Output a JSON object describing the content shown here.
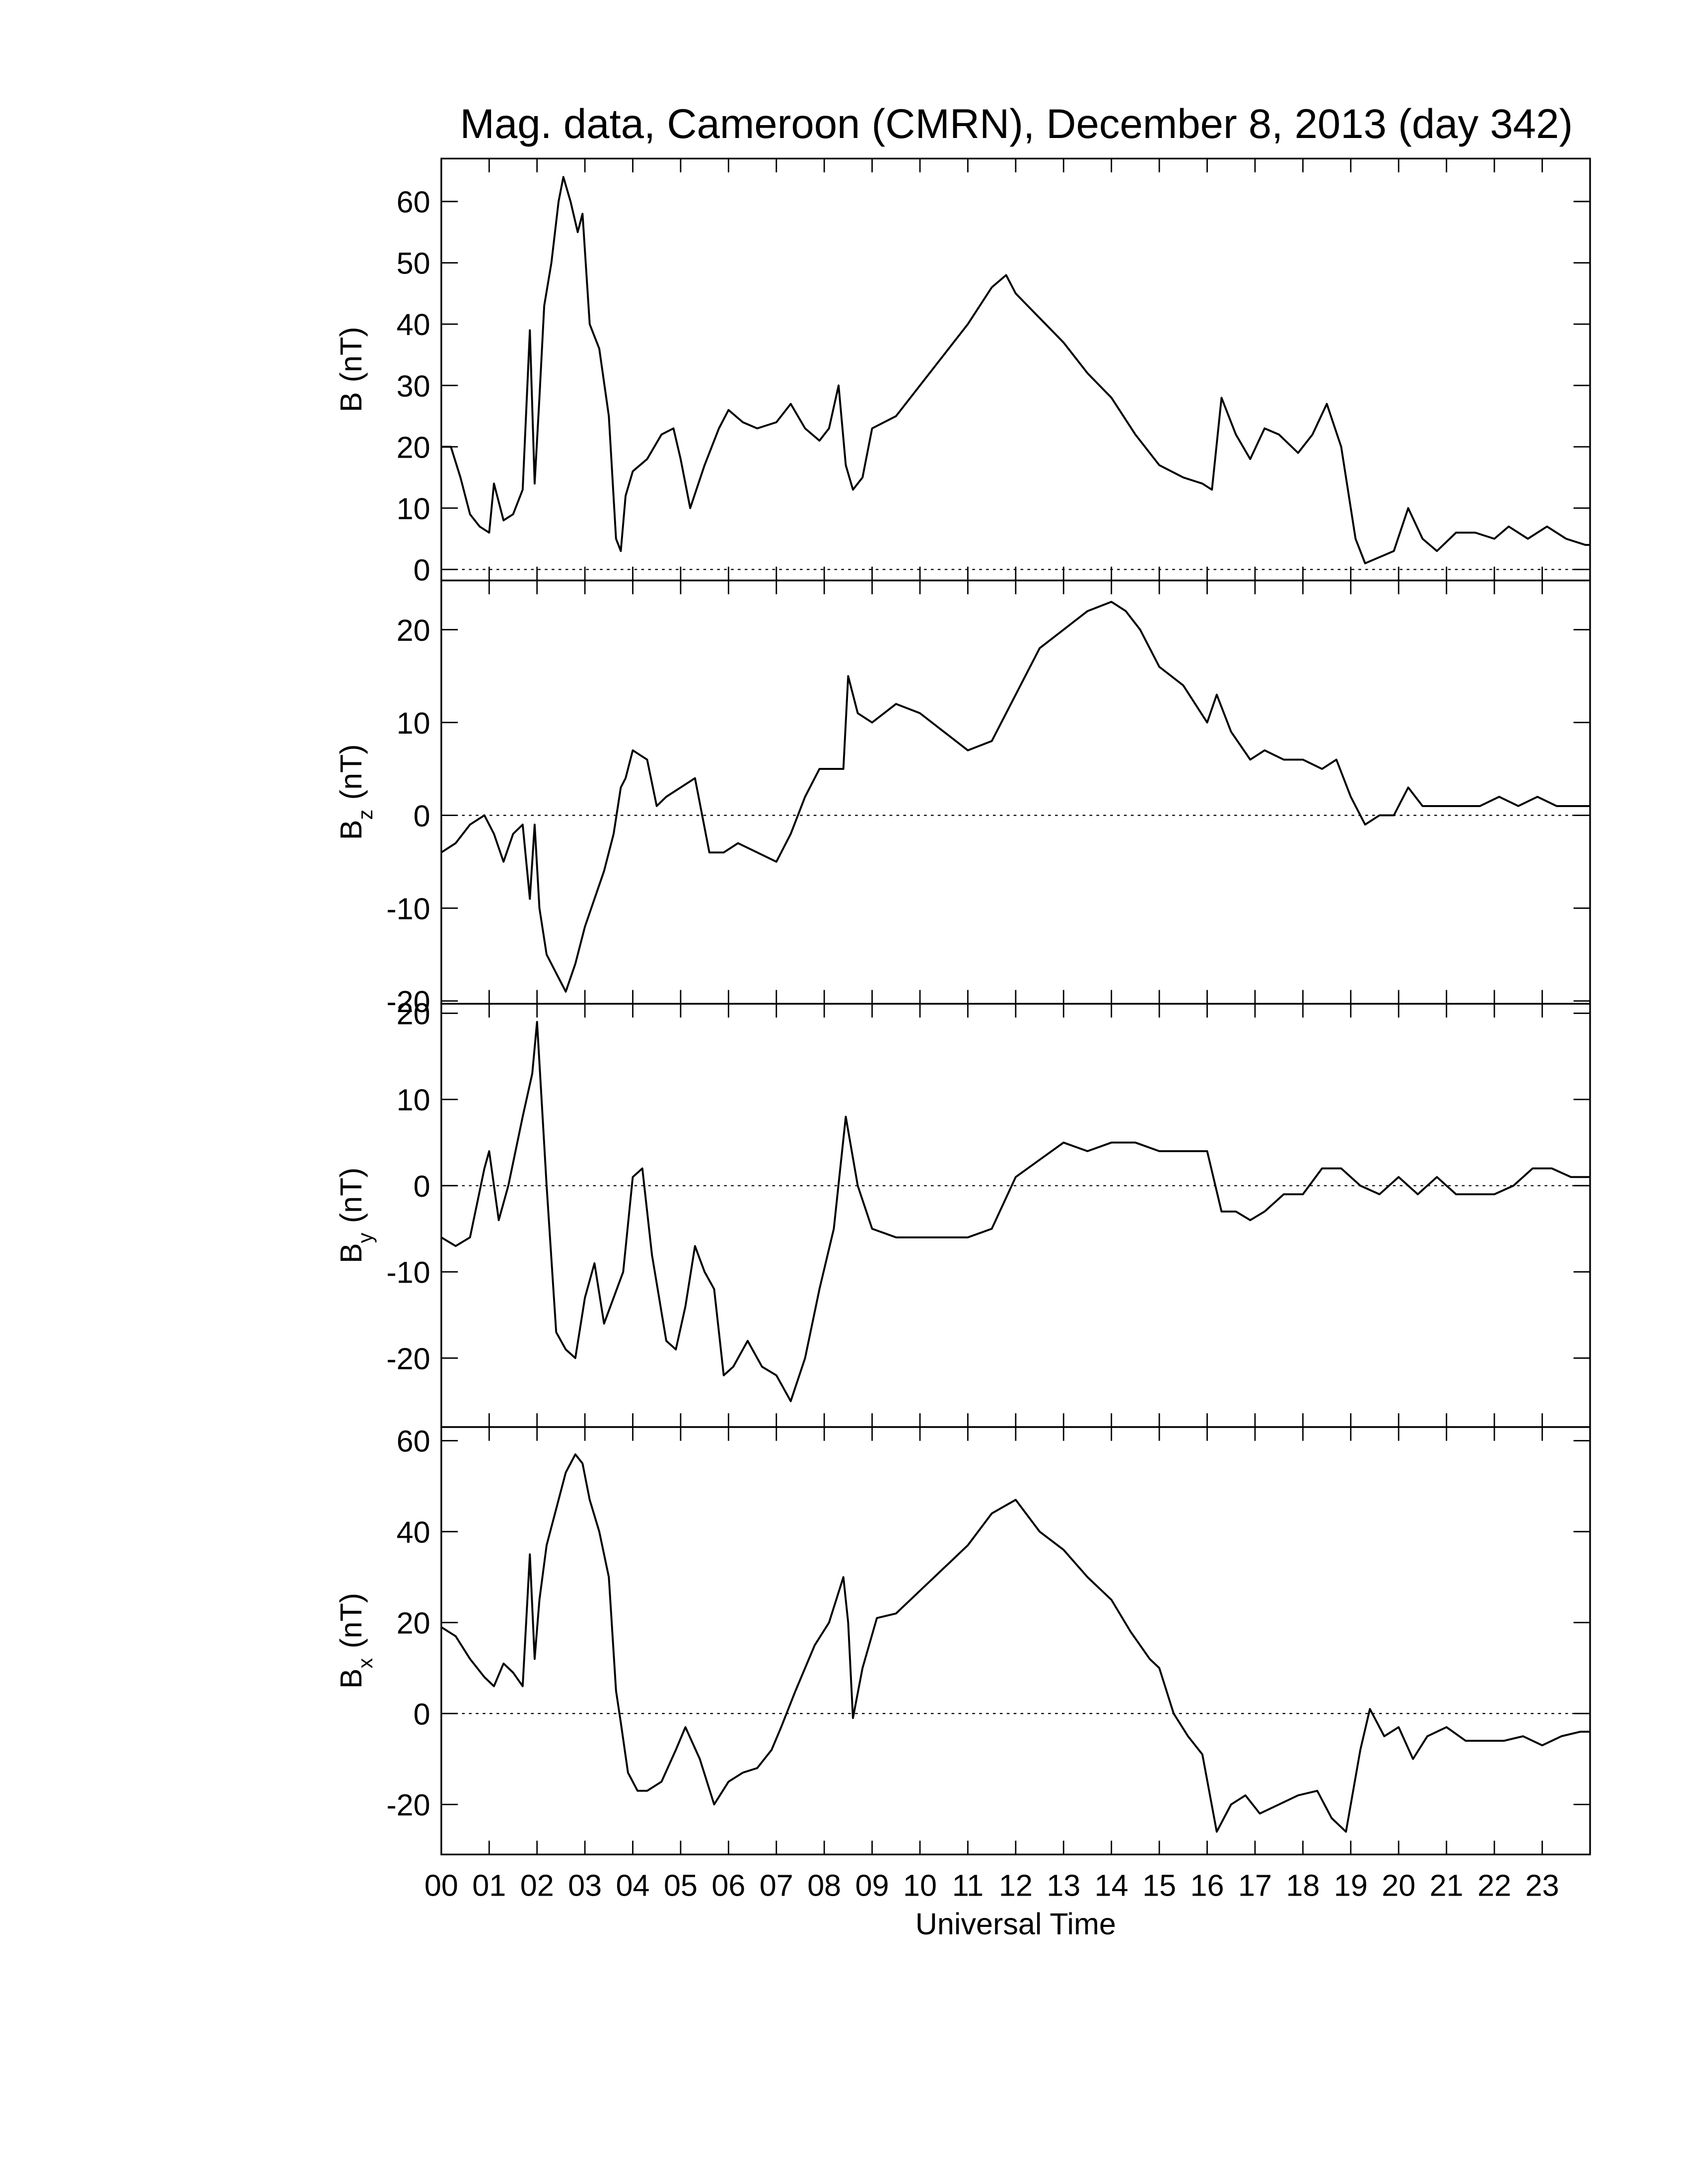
{
  "chart_data": [
    {
      "type": "line",
      "title": "Mag. data, Cameroon (CMRN), December 8, 2013 (day 342)",
      "ylabel": {
        "text": "B",
        "unit": "(nT)"
      },
      "xlim": [
        0,
        24
      ],
      "ylim": [
        -1.8,
        67
      ],
      "yticks": [
        0,
        10,
        20,
        30,
        40,
        50,
        60
      ],
      "zero_line": true,
      "color": "#000000",
      "x": [
        0,
        0.2,
        0.4,
        0.6,
        0.8,
        1.0,
        1.1,
        1.3,
        1.5,
        1.7,
        1.85,
        1.95,
        2.05,
        2.15,
        2.3,
        2.45,
        2.55,
        2.7,
        2.85,
        2.95,
        3.1,
        3.3,
        3.5,
        3.65,
        3.75,
        3.85,
        4.0,
        4.3,
        4.6,
        4.85,
        5.0,
        5.2,
        5.5,
        5.8,
        6.0,
        6.3,
        6.6,
        7.0,
        7.3,
        7.6,
        7.9,
        8.1,
        8.3,
        8.45,
        8.6,
        8.8,
        9.0,
        9.5,
        10.0,
        10.5,
        11.0,
        11.5,
        11.8,
        12.0,
        12.5,
        13.0,
        13.5,
        14.0,
        14.5,
        15.0,
        15.5,
        15.9,
        16.1,
        16.3,
        16.6,
        16.9,
        17.2,
        17.5,
        17.9,
        18.2,
        18.5,
        18.8,
        19.1,
        19.3,
        19.6,
        19.9,
        20.2,
        20.5,
        20.8,
        21.2,
        21.6,
        22.0,
        22.3,
        22.7,
        23.1,
        23.5,
        23.9,
        24.0
      ],
      "values": [
        20,
        20,
        15,
        9,
        7,
        6,
        14,
        8,
        9,
        13,
        39,
        14,
        28,
        43,
        50,
        60,
        64,
        60,
        55,
        58,
        40,
        36,
        25,
        5,
        3,
        12,
        16,
        18,
        22,
        23,
        18,
        10,
        17,
        23,
        26,
        24,
        23,
        24,
        27,
        23,
        21,
        23,
        30,
        17,
        13,
        15,
        23,
        25,
        30,
        35,
        40,
        46,
        48,
        45,
        41,
        37,
        32,
        28,
        22,
        17,
        15,
        14,
        13,
        28,
        22,
        18,
        23,
        22,
        19,
        22,
        27,
        20,
        5,
        1,
        2,
        3,
        10,
        5,
        3,
        6,
        6,
        5,
        7,
        5,
        7,
        5,
        4,
        4
      ]
    },
    {
      "type": "line",
      "ylabel": {
        "text": "B",
        "sub": "z",
        "unit": "(nT)"
      },
      "xlim": [
        0,
        24
      ],
      "ylim": [
        -20.3,
        25.3
      ],
      "yticks": [
        -20,
        -10,
        0,
        10,
        20
      ],
      "zero_line": true,
      "color": "#000000",
      "x": [
        0,
        0.3,
        0.6,
        0.9,
        1.1,
        1.3,
        1.5,
        1.7,
        1.85,
        1.95,
        2.05,
        2.2,
        2.4,
        2.6,
        2.8,
        3.0,
        3.2,
        3.4,
        3.6,
        3.75,
        3.85,
        4.0,
        4.3,
        4.5,
        4.7,
        5.0,
        5.3,
        5.6,
        5.9,
        6.2,
        6.6,
        7.0,
        7.3,
        7.6,
        7.9,
        8.2,
        8.4,
        8.5,
        8.7,
        9.0,
        9.5,
        10.0,
        10.5,
        11.0,
        11.5,
        12.0,
        12.5,
        13.0,
        13.5,
        14.0,
        14.3,
        14.6,
        15.0,
        15.5,
        16.0,
        16.2,
        16.5,
        16.9,
        17.2,
        17.6,
        18.0,
        18.4,
        18.7,
        19.0,
        19.3,
        19.6,
        19.9,
        20.2,
        20.5,
        20.9,
        21.3,
        21.7,
        22.1,
        22.5,
        22.9,
        23.3,
        23.7,
        24.0
      ],
      "values": [
        -4,
        -3,
        -1,
        0,
        -2,
        -5,
        -2,
        -1,
        -9,
        -1,
        -10,
        -15,
        -17,
        -19,
        -16,
        -12,
        -9,
        -6,
        -2,
        3,
        4,
        7,
        6,
        1,
        2,
        3,
        4,
        -4,
        -4,
        -3,
        -4,
        -5,
        -2,
        2,
        5,
        5,
        5,
        15,
        11,
        10,
        12,
        11,
        9,
        7,
        8,
        13,
        18,
        20,
        22,
        23,
        22,
        20,
        16,
        14,
        10,
        13,
        9,
        6,
        7,
        6,
        6,
        5,
        6,
        2,
        -1,
        0,
        0,
        3,
        1,
        1,
        1,
        1,
        2,
        1,
        2,
        1,
        1,
        1
      ]
    },
    {
      "type": "line",
      "ylabel": {
        "text": "B",
        "sub": "y",
        "unit": "(nT)"
      },
      "xlim": [
        0,
        24
      ],
      "ylim": [
        -28,
        21.1
      ],
      "yticks": [
        -20,
        -10,
        0,
        10,
        20
      ],
      "zero_line": true,
      "color": "#000000",
      "x": [
        0,
        0.3,
        0.6,
        0.9,
        1.0,
        1.2,
        1.4,
        1.7,
        1.9,
        2.0,
        2.2,
        2.4,
        2.6,
        2.8,
        3.0,
        3.2,
        3.4,
        3.6,
        3.8,
        4.0,
        4.2,
        4.4,
        4.7,
        4.9,
        5.1,
        5.3,
        5.5,
        5.7,
        5.9,
        6.1,
        6.4,
        6.7,
        7.0,
        7.3,
        7.6,
        7.9,
        8.2,
        8.45,
        8.7,
        9.0,
        9.5,
        10.0,
        10.5,
        11.0,
        11.5,
        12.0,
        12.5,
        13.0,
        13.5,
        14.0,
        14.5,
        15.0,
        15.5,
        16.0,
        16.3,
        16.6,
        16.9,
        17.2,
        17.6,
        18.0,
        18.4,
        18.8,
        19.2,
        19.6,
        20.0,
        20.4,
        20.8,
        21.2,
        21.6,
        22.0,
        22.4,
        22.8,
        23.2,
        23.6,
        24.0
      ],
      "values": [
        -6,
        -7,
        -6,
        2,
        4,
        -4,
        0,
        8,
        13,
        19,
        0,
        -17,
        -19,
        -20,
        -13,
        -9,
        -16,
        -13,
        -10,
        1,
        2,
        -8,
        -18,
        -19,
        -14,
        -7,
        -10,
        -12,
        -22,
        -21,
        -18,
        -21,
        -22,
        -25,
        -20,
        -12,
        -5,
        8,
        0,
        -5,
        -6,
        -6,
        -6,
        -6,
        -5,
        1,
        3,
        5,
        4,
        5,
        5,
        4,
        4,
        4,
        -3,
        -3,
        -4,
        -3,
        -1,
        -1,
        2,
        2,
        0,
        -1,
        1,
        -1,
        1,
        -1,
        -1,
        -1,
        0,
        2,
        2,
        1,
        1
      ]
    },
    {
      "type": "line",
      "ylabel": {
        "text": "B",
        "sub": "x",
        "unit": "(nT)"
      },
      "xlabel": "Universal Time",
      "xlim": [
        0,
        24
      ],
      "ylim": [
        -31,
        63
      ],
      "yticks": [
        -20,
        0,
        20,
        40,
        60
      ],
      "zero_line": true,
      "color": "#000000",
      "xticks": [
        {
          "value": 0,
          "label": "00"
        },
        {
          "value": 1,
          "label": "01"
        },
        {
          "value": 2,
          "label": "02"
        },
        {
          "value": 3,
          "label": "03"
        },
        {
          "value": 4,
          "label": "04"
        },
        {
          "value": 5,
          "label": "05"
        },
        {
          "value": 6,
          "label": "06"
        },
        {
          "value": 7,
          "label": "07"
        },
        {
          "value": 8,
          "label": "08"
        },
        {
          "value": 9,
          "label": "09"
        },
        10,
        11,
        12,
        13,
        14,
        15,
        16,
        17,
        18,
        19,
        20,
        21,
        22,
        23
      ],
      "x": [
        0,
        0.3,
        0.6,
        0.9,
        1.1,
        1.3,
        1.5,
        1.7,
        1.85,
        1.95,
        2.05,
        2.2,
        2.4,
        2.6,
        2.8,
        2.95,
        3.1,
        3.3,
        3.5,
        3.65,
        3.75,
        3.9,
        4.1,
        4.3,
        4.6,
        4.9,
        5.1,
        5.4,
        5.7,
        6.0,
        6.3,
        6.6,
        6.9,
        7.1,
        7.4,
        7.8,
        8.1,
        8.4,
        8.5,
        8.6,
        8.8,
        9.1,
        9.5,
        10.0,
        10.5,
        11.0,
        11.5,
        12.0,
        12.5,
        13.0,
        13.5,
        14.0,
        14.4,
        14.8,
        15.0,
        15.3,
        15.6,
        15.9,
        16.2,
        16.5,
        16.8,
        17.1,
        17.5,
        17.9,
        18.3,
        18.6,
        18.9,
        19.2,
        19.4,
        19.7,
        20.0,
        20.3,
        20.6,
        21.0,
        21.4,
        21.8,
        22.2,
        22.6,
        23.0,
        23.4,
        23.8,
        24.0
      ],
      "values": [
        19,
        17,
        12,
        8,
        6,
        11,
        9,
        6,
        35,
        12,
        25,
        37,
        45,
        53,
        57,
        55,
        47,
        40,
        30,
        5,
        -2,
        -13,
        -17,
        -17,
        -15,
        -8,
        -3,
        -10,
        -20,
        -15,
        -13,
        -12,
        -8,
        -3,
        5,
        15,
        20,
        30,
        20,
        -1,
        10,
        21,
        22,
        27,
        32,
        37,
        44,
        47,
        40,
        36,
        30,
        25,
        18,
        12,
        10,
        0,
        -5,
        -9,
        -26,
        -20,
        -18,
        -22,
        -20,
        -18,
        -17,
        -23,
        -26,
        -8,
        1,
        -5,
        -3,
        -10,
        -5,
        -3,
        -6,
        -6,
        -6,
        -5,
        -7,
        -5,
        -4,
        -4
      ]
    }
  ]
}
